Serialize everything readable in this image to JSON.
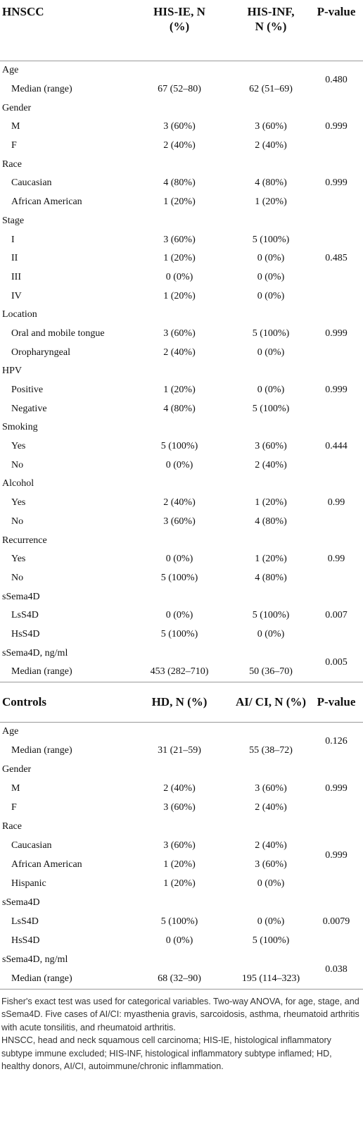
{
  "tables": [
    {
      "header": [
        "HNSCC",
        "HIS-IE, N (%)",
        "HIS-INF, N (%)",
        "P-value"
      ],
      "groups": [
        {
          "label": "Age",
          "p_value": "0.480",
          "rows": [
            [
              "Median (range)",
              "67 (52–80)",
              "62 (51–69)"
            ]
          ]
        },
        {
          "label": "Gender",
          "p_value": "0.999",
          "rows": [
            [
              "M",
              "3 (60%)",
              "3 (60%)"
            ],
            [
              "F",
              "2 (40%)",
              "2 (40%)"
            ]
          ]
        },
        {
          "label": "Race",
          "p_value": "0.999",
          "rows": [
            [
              "Caucasian",
              "4 (80%)",
              "4 (80%)"
            ],
            [
              "African American",
              "1 (20%)",
              "1 (20%)"
            ]
          ]
        },
        {
          "label": "Stage",
          "p_value": "0.485",
          "rows": [
            [
              "I",
              "3 (60%)",
              "5 (100%)"
            ],
            [
              "II",
              "1 (20%)",
              "0 (0%)"
            ],
            [
              "III",
              "0 (0%)",
              "0 (0%)"
            ],
            [
              "IV",
              "1 (20%)",
              "0 (0%)"
            ]
          ]
        },
        {
          "label": "Location",
          "p_value": "0.999",
          "rows": [
            [
              "Oral and mobile tongue",
              "3 (60%)",
              "5 (100%)"
            ],
            [
              "Oropharyngeal",
              "2 (40%)",
              "0 (0%)"
            ]
          ]
        },
        {
          "label": "HPV",
          "p_value": "0.999",
          "rows": [
            [
              "Positive",
              "1 (20%)",
              "0 (0%)"
            ],
            [
              "Negative",
              "4 (80%)",
              "5 (100%)"
            ]
          ]
        },
        {
          "label": "Smoking",
          "p_value": "0.444",
          "rows": [
            [
              "Yes",
              "5 (100%)",
              "3 (60%)"
            ],
            [
              "No",
              "0 (0%)",
              "2 (40%)"
            ]
          ]
        },
        {
          "label": "Alcohol",
          "p_value": "0.99",
          "rows": [
            [
              "Yes",
              "2 (40%)",
              "1 (20%)"
            ],
            [
              "No",
              "3 (60%)",
              "4 (80%)"
            ]
          ]
        },
        {
          "label": "Recurrence",
          "p_value": "0.99",
          "rows": [
            [
              "Yes",
              "0 (0%)",
              "1 (20%)"
            ],
            [
              "No",
              "5 (100%)",
              "4 (80%)"
            ]
          ]
        },
        {
          "label": "sSema4D",
          "p_value": "0.007",
          "rows": [
            [
              "LsS4D",
              "0 (0%)",
              "5 (100%)"
            ],
            [
              "HsS4D",
              "5 (100%)",
              "0 (0%)"
            ]
          ]
        },
        {
          "label": "sSema4D, ng/ml",
          "p_value": "0.005",
          "rows": [
            [
              "Median (range)",
              "453 (282–710)",
              "50 (36–70)"
            ]
          ]
        }
      ]
    },
    {
      "header": [
        "Controls",
        "HD, N (%)",
        "AI/ CI, N (%)",
        "P-value"
      ],
      "groups": [
        {
          "label": "Age",
          "p_value": "0.126",
          "rows": [
            [
              "Median (range)",
              "31 (21–59)",
              "55 (38–72)"
            ]
          ]
        },
        {
          "label": "Gender",
          "p_value": "0.999",
          "rows": [
            [
              "M",
              "2 (40%)",
              "3 (60%)"
            ],
            [
              "F",
              "3 (60%)",
              "2 (40%)"
            ]
          ]
        },
        {
          "label": "Race",
          "p_value": "0.999",
          "rows": [
            [
              "Caucasian",
              "3 (60%)",
              "2 (40%)"
            ],
            [
              "African American",
              "1 (20%)",
              "3 (60%)"
            ],
            [
              "Hispanic",
              "1 (20%)",
              "0 (0%)"
            ]
          ]
        },
        {
          "label": "sSema4D",
          "p_value": "0.0079",
          "rows": [
            [
              "LsS4D",
              "5 (100%)",
              "0 (0%)"
            ],
            [
              "HsS4D",
              "0 (0%)",
              "5 (100%)"
            ]
          ]
        },
        {
          "label": "sSema4D, ng/ml",
          "p_value": "0.038",
          "rows": [
            [
              "Median (range)",
              "68 (32–90)",
              "195 (114–323)"
            ]
          ]
        }
      ]
    }
  ],
  "footnote": [
    "Fisher's exact test was used for categorical variables. Two-way ANOVA, for age, stage, and sSema4D. Five cases of AI/CI: myasthenia gravis, sarcoidosis, asthma, rheumatoid arthritis with acute tonsilitis, and rheumatoid arthritis.",
    "HNSCC, head and neck squamous cell carcinoma; HIS-IE, histological inflammatory subtype immune excluded; HIS-INF, histological inflammatory subtype inflamed; HD, healthy donors, AI/CI, autoimmune/chronic inflammation."
  ]
}
